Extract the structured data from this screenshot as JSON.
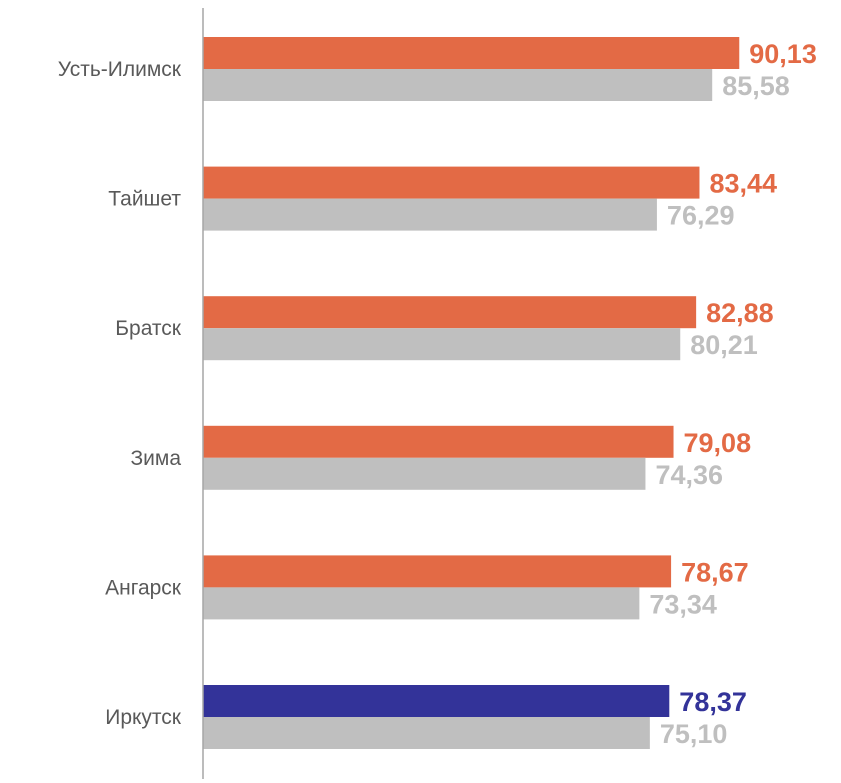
{
  "chart_data": {
    "type": "bar",
    "orientation": "horizontal",
    "categories": [
      "Усть-Илимск",
      "Тайшет",
      "Братск",
      "Зима",
      "Ангарск",
      "Иркутск"
    ],
    "series": [
      {
        "values": [
          90.13,
          83.44,
          82.88,
          79.08,
          78.67,
          78.37
        ],
        "labels": [
          "90,13",
          "83,44",
          "82,88",
          "79,08",
          "78,67",
          "78,37"
        ],
        "color": "#E36A45",
        "highlight": {
          "category": "Иркутск",
          "color": "#333399"
        }
      },
      {
        "values": [
          85.58,
          76.29,
          80.21,
          74.36,
          73.34,
          75.1
        ],
        "labels": [
          "85,58",
          "76,29",
          "80,21",
          "74,36",
          "73,34",
          "75,10"
        ],
        "color": "#BFBFBF"
      }
    ],
    "title": "",
    "xlabel": "",
    "ylabel": "",
    "xlim": [
      0,
      98
    ],
    "grid": false,
    "legend": "none"
  }
}
